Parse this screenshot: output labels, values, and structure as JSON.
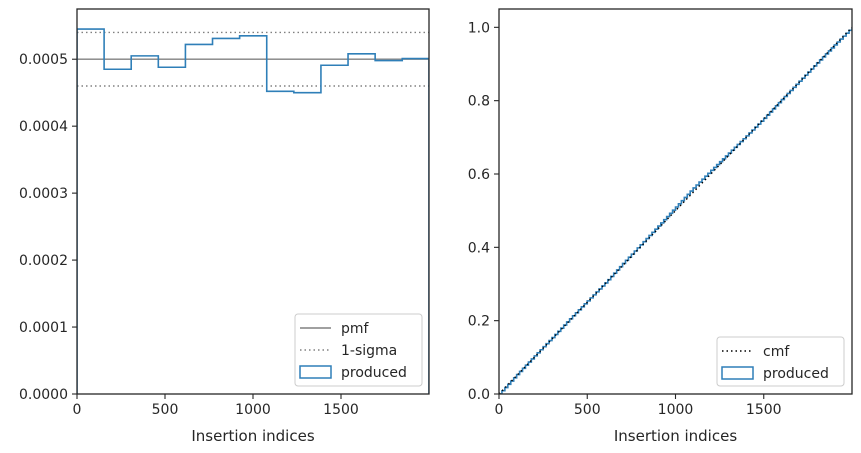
{
  "chart_data": [
    {
      "type": "step",
      "xlabel": "Insertion indices",
      "ylabel": "",
      "xlim": [
        0,
        2000
      ],
      "ylim": [
        0,
        0.000575
      ],
      "xticks": [
        0,
        500,
        1000,
        1500
      ],
      "xtick_labels": [
        "0",
        "500",
        "1000",
        "1500"
      ],
      "yticks": [
        0,
        0.0001,
        0.0002,
        0.0003,
        0.0004,
        0.0005
      ],
      "ytick_labels": [
        "0.0000",
        "0.0001",
        "0.0002",
        "0.0003",
        "0.0004",
        "0.0005"
      ],
      "grid": false,
      "legend_position": "lower-right",
      "lines": [
        {
          "name": "pmf",
          "style": "solid",
          "color": "#808080",
          "y": 0.0005
        },
        {
          "name": "1-sigma",
          "style": "dotted",
          "color": "#808080",
          "y": [
            0.00046,
            0.00054
          ]
        }
      ],
      "histogram": {
        "name": "produced",
        "color": "#2f7fb8",
        "bin_edges": [
          0,
          154,
          308,
          462,
          616,
          770,
          924,
          1078,
          1232,
          1386,
          1540,
          1694,
          1848,
          2000
        ],
        "values": [
          0.000545,
          0.000485,
          0.000505,
          0.000488,
          0.000522,
          0.000531,
          0.000535,
          0.000452,
          0.00045,
          0.000491,
          0.000508,
          0.000498,
          0.000501
        ]
      },
      "legend": [
        "pmf",
        "1-sigma",
        "produced"
      ]
    },
    {
      "type": "line",
      "xlabel": "Insertion indices",
      "ylabel": "",
      "xlim": [
        0,
        2000
      ],
      "ylim": [
        0,
        1.05
      ],
      "xticks": [
        0,
        500,
        1000,
        1500
      ],
      "xtick_labels": [
        "0",
        "500",
        "1000",
        "1500"
      ],
      "yticks": [
        0,
        0.2,
        0.4,
        0.6,
        0.8,
        1.0
      ],
      "ytick_labels": [
        "0.0",
        "0.2",
        "0.4",
        "0.6",
        "0.8",
        "1.0"
      ],
      "grid": false,
      "legend_position": "lower-right",
      "series": [
        {
          "name": "cmf",
          "style": "dotted",
          "color": "#000000",
          "x": [
            0,
            2000
          ],
          "y": [
            0,
            1.0
          ]
        },
        {
          "name": "produced",
          "style": "step",
          "color": "#2f7fb8",
          "x": [
            0,
            100,
            200,
            300,
            400,
            500,
            600,
            700,
            800,
            900,
            1000,
            1100,
            1200,
            1300,
            1400,
            1500,
            1600,
            1700,
            1800,
            1900,
            2000
          ],
          "y": [
            0,
            0.053,
            0.104,
            0.154,
            0.205,
            0.254,
            0.303,
            0.356,
            0.407,
            0.458,
            0.51,
            0.562,
            0.61,
            0.657,
            0.704,
            0.752,
            0.803,
            0.853,
            0.903,
            0.952,
            1.0
          ]
        }
      ],
      "legend": [
        "cmf",
        "produced"
      ]
    }
  ]
}
